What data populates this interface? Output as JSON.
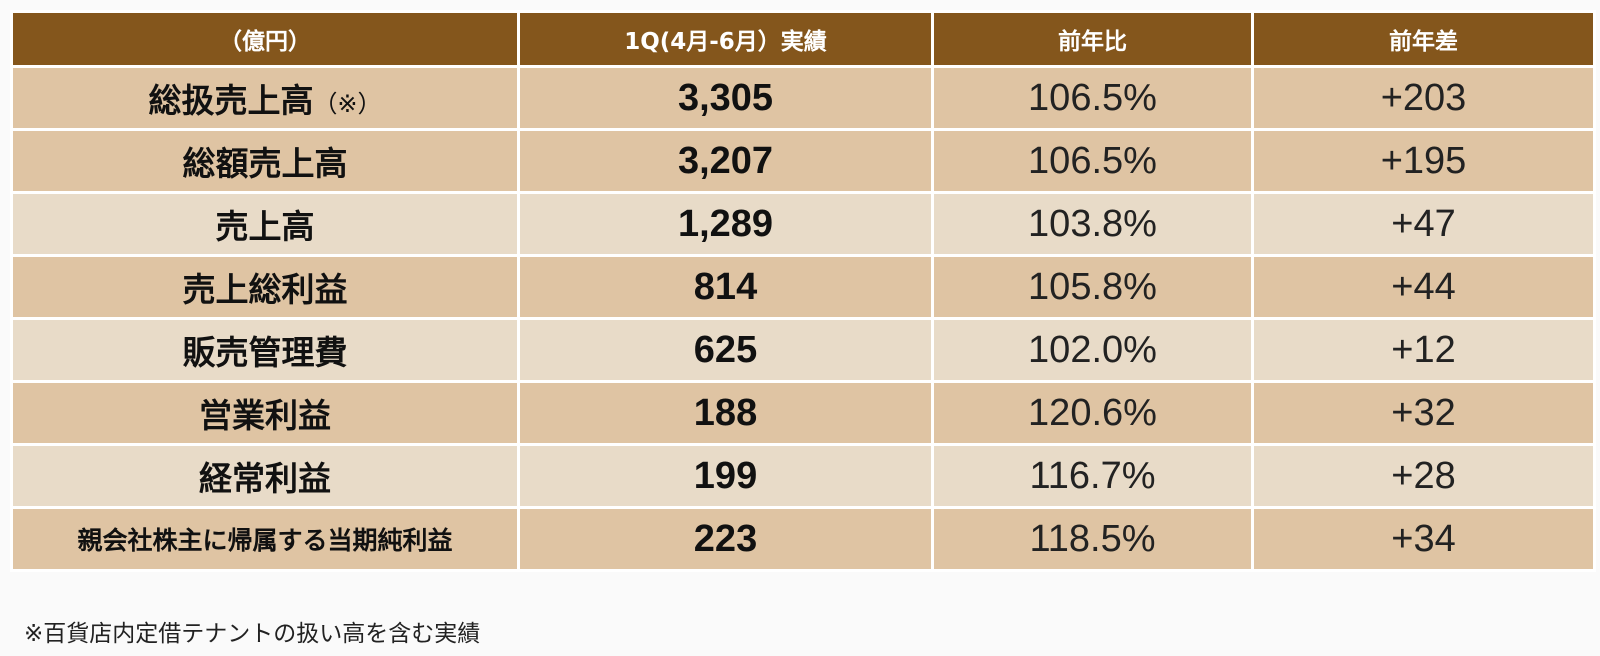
{
  "header": {
    "col1": "（億円）",
    "col2": "1Q(4月-6月）実績",
    "col3": "前年比",
    "col4": "前年差"
  },
  "rows": [
    {
      "label": "総扱売上高",
      "note": "（※）",
      "result": "3,305",
      "ratio": "106.5%",
      "diff": "+203"
    },
    {
      "label": "総額売上高",
      "note": "",
      "result": "3,207",
      "ratio": "106.5%",
      "diff": "+195"
    },
    {
      "label": "売上高",
      "note": "",
      "result": "1,289",
      "ratio": "103.8%",
      "diff": "+47"
    },
    {
      "label": "売上総利益",
      "note": "",
      "result": "814",
      "ratio": "105.8%",
      "diff": "+44"
    },
    {
      "label": "販売管理費",
      "note": "",
      "result": "625",
      "ratio": "102.0%",
      "diff": "+12"
    },
    {
      "label": "営業利益",
      "note": "",
      "result": "188",
      "ratio": "120.6%",
      "diff": "+32"
    },
    {
      "label": "経常利益",
      "note": "",
      "result": "199",
      "ratio": "116.7%",
      "diff": "+28"
    },
    {
      "label": "親会社株主に帰属する当期純利益",
      "note": "",
      "result": "223",
      "ratio": "118.5%",
      "diff": "+34"
    }
  ],
  "footnote": "※百貨店内定借テナントの扱い高を含む実績",
  "colors": {
    "header_bg": "#84561c",
    "row_dark": "#dfc4a3",
    "row_light": "#e8dbc8"
  }
}
